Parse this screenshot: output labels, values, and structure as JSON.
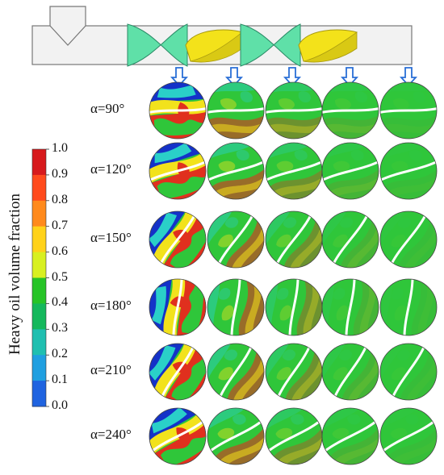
{
  "colorbar": {
    "title": "Heavy oil volume fraction",
    "ticks": [
      "1.0",
      "0.9",
      "0.8",
      "0.7",
      "0.6",
      "0.5",
      "0.4",
      "0.3",
      "0.2",
      "0.1",
      "0.0"
    ],
    "colors": [
      "#d7191c",
      "#ff4a1c",
      "#ff8a1c",
      "#ffd21a",
      "#d8f021",
      "#27c427",
      "#15b85c",
      "#1fbfb0",
      "#1f9fe0",
      "#1f63e0",
      "#0a2cc0"
    ]
  },
  "rows": [
    {
      "alpha": "α=90°"
    },
    {
      "alpha": "α=120°"
    },
    {
      "alpha": "α=150°"
    },
    {
      "alpha": "α=180°"
    },
    {
      "alpha": "α=210°"
    },
    {
      "alpha": "α=240°"
    }
  ],
  "colors": {
    "pipe_fill": "#f2f2f2",
    "pipe_stroke": "#777777",
    "vane_teal": "#5fe0a8",
    "vane_yellow": "#f3e21a",
    "arrow_blue": "#2a6fd6",
    "field_green": "#2fc63a",
    "field_red": "#e0301e",
    "field_blue": "#1432c8",
    "field_yellow": "#f2e21c",
    "field_cyan": "#2ad0c8"
  }
}
